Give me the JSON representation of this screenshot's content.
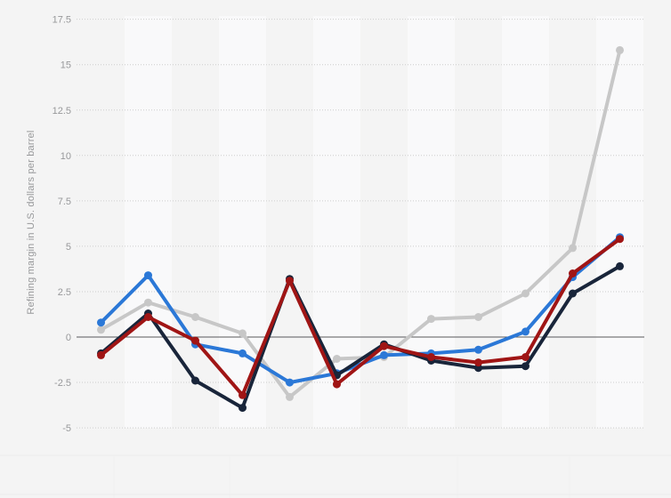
{
  "page": {
    "background_color": "#f4f4f4",
    "band_color": "#f9f9fa",
    "title": "",
    "legend_visible": false
  },
  "chart_data": {
    "type": "line",
    "x": [
      1,
      2,
      3,
      4,
      5,
      6,
      7,
      8,
      9,
      10,
      11,
      12
    ],
    "x_tick_labels": [
      "",
      "",
      "",
      "",
      "",
      "",
      "",
      "",
      "",
      "",
      "",
      ""
    ],
    "title": "",
    "xlabel": "",
    "ylabel": "Refining margin in U.S. dollars per barrel",
    "ylim": [
      -6.2,
      18.5
    ],
    "yticks": [
      17.5,
      15,
      12.5,
      10,
      7.5,
      5,
      2.5,
      0,
      -2.5,
      -5
    ],
    "grid": "horizontal-dotted",
    "zero_line": true,
    "legend_position": "none",
    "series": [
      {
        "name": "series-gray",
        "color": "#c7c7c7",
        "values": [
          0.4,
          1.9,
          1.1,
          0.2,
          -3.3,
          -1.2,
          -1.1,
          1.0,
          1.1,
          2.4,
          4.9,
          15.8
        ]
      },
      {
        "name": "series-blue",
        "color": "#2b78d7",
        "values": [
          0.8,
          3.4,
          -0.4,
          -0.9,
          -2.5,
          -2.0,
          -1.0,
          -0.9,
          -0.7,
          0.3,
          3.3,
          5.5
        ]
      },
      {
        "name": "series-dark-navy",
        "color": "#19253a",
        "values": [
          -0.9,
          1.3,
          -2.4,
          -3.9,
          3.2,
          -2.1,
          -0.4,
          -1.3,
          -1.7,
          -1.6,
          2.4,
          3.9
        ]
      },
      {
        "name": "series-dark-red",
        "color": "#a01515",
        "values": [
          -1.0,
          1.1,
          -0.2,
          -3.2,
          3.1,
          -2.6,
          -0.5,
          -1.1,
          -1.4,
          -1.1,
          3.5,
          5.4
        ]
      }
    ]
  },
  "axis_style": {
    "gridline_color": "#cdcdcd",
    "zero_line_color": "#59595b",
    "tick_text_color": "#97989a"
  }
}
